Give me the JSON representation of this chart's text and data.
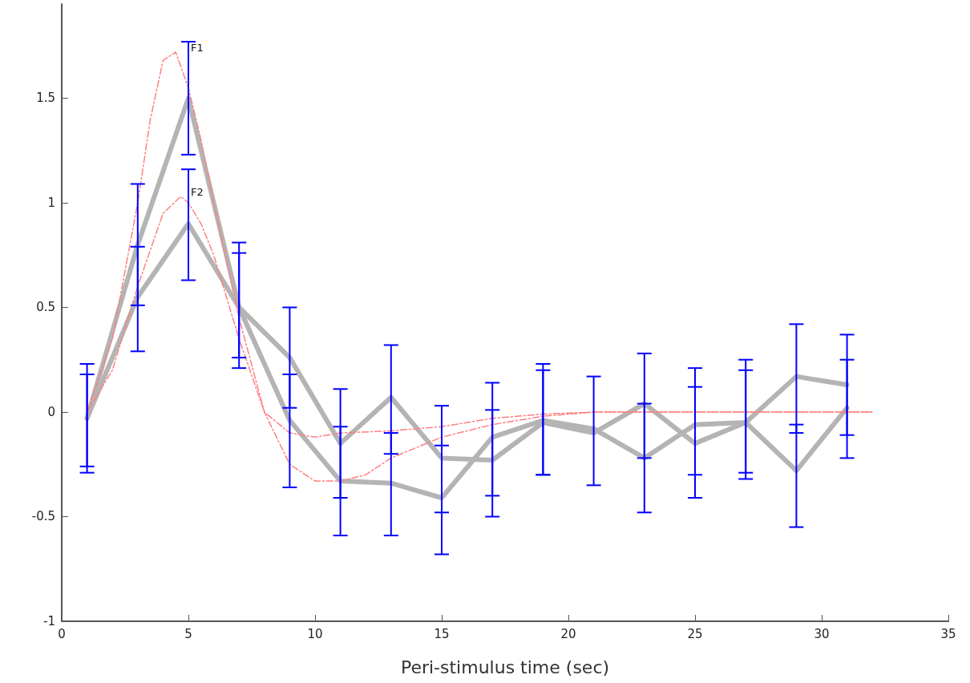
{
  "chart_data": {
    "type": "line",
    "xlabel": "Peri-stimulus time (sec)",
    "x": [
      1,
      3,
      5,
      7,
      9,
      11,
      13,
      15,
      17,
      19,
      21,
      23,
      25,
      27,
      29,
      31
    ],
    "series": [
      {
        "color": "#b4b4b4",
        "values": [
          -0.03,
          0.8,
          1.5,
          0.5,
          -0.04,
          -0.33,
          -0.34,
          -0.41,
          -0.12,
          -0.04,
          -0.08,
          -0.22,
          -0.06,
          -0.05,
          0.17,
          0.13
        ],
        "errors": [
          [
            -0.29,
            0.23
          ],
          [
            0.51,
            1.09
          ],
          [
            1.23,
            1.77
          ],
          [
            0.21,
            0.81
          ],
          [
            -0.36,
            0.18
          ],
          [
            -0.59,
            -0.07
          ],
          [
            -0.59,
            -0.1
          ],
          [
            -0.68,
            -0.16
          ],
          [
            -0.4,
            0.14
          ],
          [
            -0.3,
            0.23
          ],
          [
            -0.35,
            0.17
          ],
          [
            -0.48,
            0.04
          ],
          [
            -0.3,
            0.21
          ],
          [
            -0.29,
            0.25
          ],
          [
            -0.1,
            0.42
          ],
          [
            -0.11,
            0.37
          ]
        ]
      },
      {
        "color": "#b4b4b4",
        "values": [
          -0.03,
          0.55,
          0.9,
          0.5,
          0.26,
          -0.15,
          0.07,
          -0.22,
          -0.23,
          -0.05,
          -0.1,
          0.04,
          -0.15,
          -0.05,
          -0.28,
          0.02
        ],
        "errors": [
          [
            -0.26,
            0.18
          ],
          [
            0.29,
            0.79
          ],
          [
            0.63,
            1.16
          ],
          [
            0.26,
            0.76
          ],
          [
            0.02,
            0.5
          ],
          [
            -0.41,
            0.11
          ],
          [
            -0.2,
            0.32
          ],
          [
            -0.48,
            0.03
          ],
          [
            -0.5,
            0.01
          ],
          [
            -0.3,
            0.2
          ],
          [
            -0.35,
            0.17
          ],
          [
            -0.22,
            0.28
          ],
          [
            -0.41,
            0.12
          ],
          [
            -0.32,
            0.2
          ],
          [
            -0.55,
            -0.06
          ],
          [
            -0.22,
            0.25
          ]
        ]
      },
      {
        "color": "#ff8080",
        "line_style": "dashed",
        "x": [
          1,
          2,
          3,
          3.5,
          4,
          4.5,
          5,
          5.5,
          6,
          7,
          8,
          9,
          10,
          11,
          12,
          13,
          15,
          17,
          19,
          21,
          25,
          32
        ],
        "values": [
          0,
          0.35,
          1.0,
          1.4,
          1.68,
          1.72,
          1.55,
          1.3,
          1.0,
          0.45,
          0.0,
          -0.25,
          -0.33,
          -0.33,
          -0.3,
          -0.22,
          -0.12,
          -0.06,
          -0.02,
          0,
          0,
          0
        ]
      },
      {
        "color": "#ff8080",
        "line_style": "dashed",
        "x": [
          1,
          2,
          3,
          4,
          4.7,
          5,
          5.5,
          6,
          7,
          8,
          9,
          10,
          11,
          13,
          15,
          17,
          19,
          21,
          25,
          32
        ],
        "values": [
          0,
          0.2,
          0.6,
          0.95,
          1.03,
          1.0,
          0.9,
          0.75,
          0.35,
          0.0,
          -0.1,
          -0.12,
          -0.1,
          -0.09,
          -0.07,
          -0.03,
          -0.01,
          0,
          0,
          0
        ]
      }
    ],
    "annotations": [
      {
        "text": "F1",
        "x": 5,
        "y": 1.72
      },
      {
        "text": "F2",
        "x": 5,
        "y": 1.03
      }
    ],
    "xlim": [
      0,
      35
    ],
    "xticks": [
      0,
      5,
      10,
      15,
      20,
      25,
      30,
      35
    ],
    "ylim": [
      -1,
      1.95
    ],
    "yticks": [
      -1,
      -0.5,
      0,
      0.5,
      1,
      1.5
    ],
    "marker": "none",
    "grid": false
  }
}
